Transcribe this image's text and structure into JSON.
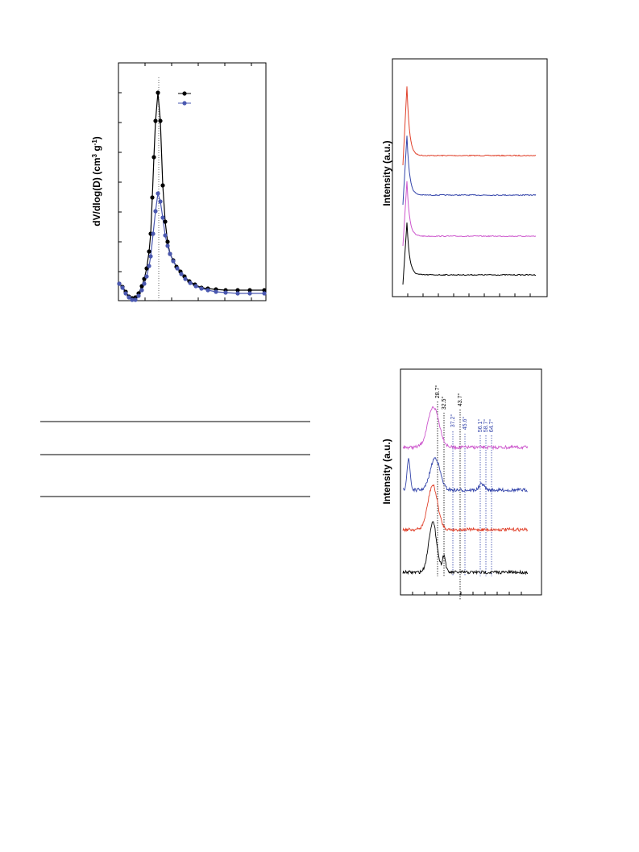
{
  "figures": [
    {
      "y_label": {
        "start": "dV/dlog(D) (cm",
        "sup1": "3",
        "mid": " g",
        "sup2": "-1",
        "end": ")"
      }
    },
    {
      "y_label": "Intensity (a.u.)"
    },
    {
      "y_label": "Intensity (a.u.)",
      "peak_labels": [
        "28.7°",
        "32.5°",
        "37.2°",
        "43.7°",
        "45.6°",
        "56.1°",
        "58.7°",
        "64.7°"
      ]
    }
  ]
}
